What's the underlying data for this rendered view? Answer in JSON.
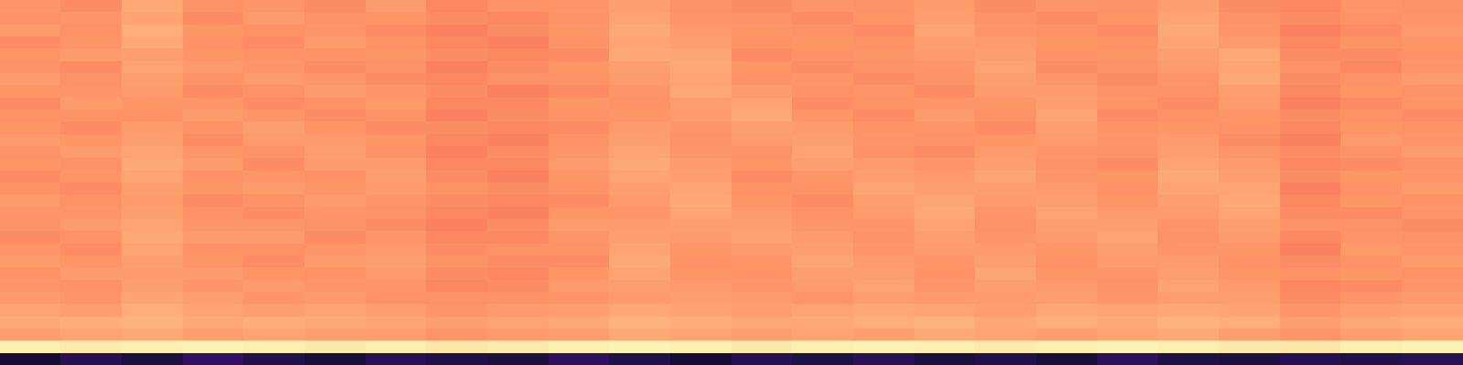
{
  "chart_data": {
    "type": "heatmap",
    "tick_labels": false,
    "zlim": [
      0,
      1
    ],
    "cells": [
      [
        0.78,
        0.76,
        0.82,
        0.77,
        0.78,
        0.76,
        0.79,
        0.75,
        0.77,
        0.78,
        0.8,
        0.77,
        0.76,
        0.78,
        0.77,
        0.79,
        0.76,
        0.78,
        0.77,
        0.8,
        0.76,
        0.75,
        0.78,
        0.77
      ],
      [
        0.77,
        0.78,
        0.81,
        0.76,
        0.79,
        0.77,
        0.78,
        0.76,
        0.75,
        0.77,
        0.81,
        0.78,
        0.77,
        0.76,
        0.78,
        0.8,
        0.77,
        0.76,
        0.78,
        0.81,
        0.77,
        0.76,
        0.77,
        0.78
      ],
      [
        0.79,
        0.77,
        0.83,
        0.78,
        0.77,
        0.78,
        0.76,
        0.74,
        0.76,
        0.78,
        0.82,
        0.79,
        0.78,
        0.77,
        0.76,
        0.81,
        0.78,
        0.77,
        0.76,
        0.82,
        0.78,
        0.74,
        0.76,
        0.79
      ],
      [
        0.76,
        0.78,
        0.82,
        0.77,
        0.76,
        0.79,
        0.77,
        0.75,
        0.74,
        0.77,
        0.81,
        0.8,
        0.77,
        0.78,
        0.77,
        0.8,
        0.79,
        0.78,
        0.77,
        0.81,
        0.79,
        0.75,
        0.77,
        0.78
      ],
      [
        0.78,
        0.79,
        0.8,
        0.78,
        0.77,
        0.77,
        0.78,
        0.76,
        0.75,
        0.76,
        0.82,
        0.81,
        0.76,
        0.77,
        0.78,
        0.79,
        0.8,
        0.77,
        0.78,
        0.8,
        0.82,
        0.76,
        0.76,
        0.77
      ],
      [
        0.77,
        0.76,
        0.81,
        0.79,
        0.78,
        0.76,
        0.77,
        0.74,
        0.76,
        0.78,
        0.8,
        0.82,
        0.78,
        0.76,
        0.77,
        0.78,
        0.81,
        0.76,
        0.77,
        0.79,
        0.81,
        0.77,
        0.75,
        0.78
      ],
      [
        0.79,
        0.77,
        0.8,
        0.77,
        0.79,
        0.78,
        0.76,
        0.75,
        0.77,
        0.77,
        0.79,
        0.81,
        0.77,
        0.78,
        0.76,
        0.77,
        0.8,
        0.78,
        0.76,
        0.78,
        0.82,
        0.76,
        0.77,
        0.79
      ],
      [
        0.78,
        0.78,
        0.79,
        0.76,
        0.77,
        0.79,
        0.78,
        0.76,
        0.74,
        0.76,
        0.78,
        0.82,
        0.79,
        0.77,
        0.78,
        0.76,
        0.79,
        0.79,
        0.77,
        0.77,
        0.8,
        0.75,
        0.78,
        0.77
      ],
      [
        0.76,
        0.79,
        0.78,
        0.78,
        0.76,
        0.77,
        0.79,
        0.75,
        0.75,
        0.78,
        0.77,
        0.8,
        0.81,
        0.76,
        0.77,
        0.78,
        0.78,
        0.8,
        0.78,
        0.76,
        0.79,
        0.74,
        0.76,
        0.78
      ],
      [
        0.77,
        0.77,
        0.77,
        0.79,
        0.78,
        0.76,
        0.77,
        0.74,
        0.76,
        0.77,
        0.78,
        0.79,
        0.82,
        0.78,
        0.76,
        0.79,
        0.77,
        0.81,
        0.76,
        0.77,
        0.78,
        0.76,
        0.77,
        0.76
      ],
      [
        0.78,
        0.76,
        0.79,
        0.77,
        0.8,
        0.78,
        0.76,
        0.76,
        0.75,
        0.76,
        0.79,
        0.78,
        0.8,
        0.79,
        0.77,
        0.78,
        0.76,
        0.8,
        0.77,
        0.78,
        0.77,
        0.75,
        0.78,
        0.77
      ],
      [
        0.79,
        0.78,
        0.8,
        0.76,
        0.79,
        0.79,
        0.78,
        0.75,
        0.74,
        0.77,
        0.8,
        0.77,
        0.79,
        0.8,
        0.78,
        0.77,
        0.78,
        0.79,
        0.78,
        0.79,
        0.76,
        0.74,
        0.79,
        0.78
      ],
      [
        0.77,
        0.79,
        0.81,
        0.78,
        0.77,
        0.8,
        0.77,
        0.74,
        0.76,
        0.78,
        0.81,
        0.78,
        0.77,
        0.81,
        0.77,
        0.76,
        0.79,
        0.78,
        0.77,
        0.8,
        0.78,
        0.76,
        0.77,
        0.79
      ],
      [
        0.78,
        0.77,
        0.82,
        0.79,
        0.76,
        0.79,
        0.79,
        0.75,
        0.75,
        0.79,
        0.82,
        0.79,
        0.78,
        0.8,
        0.79,
        0.78,
        0.8,
        0.77,
        0.76,
        0.81,
        0.79,
        0.75,
        0.76,
        0.77
      ],
      [
        0.76,
        0.78,
        0.81,
        0.77,
        0.78,
        0.77,
        0.8,
        0.76,
        0.74,
        0.78,
        0.81,
        0.8,
        0.76,
        0.78,
        0.8,
        0.79,
        0.81,
        0.78,
        0.78,
        0.82,
        0.8,
        0.76,
        0.78,
        0.78
      ],
      [
        0.77,
        0.76,
        0.8,
        0.78,
        0.79,
        0.78,
        0.79,
        0.77,
        0.76,
        0.77,
        0.8,
        0.81,
        0.77,
        0.77,
        0.81,
        0.8,
        0.8,
        0.79,
        0.77,
        0.81,
        0.81,
        0.74,
        0.77,
        0.79
      ],
      [
        0.79,
        0.77,
        0.79,
        0.76,
        0.77,
        0.79,
        0.78,
        0.76,
        0.75,
        0.76,
        0.79,
        0.82,
        0.78,
        0.76,
        0.8,
        0.81,
        0.79,
        0.8,
        0.78,
        0.8,
        0.82,
        0.75,
        0.78,
        0.77
      ],
      [
        0.78,
        0.78,
        0.8,
        0.77,
        0.76,
        0.78,
        0.77,
        0.75,
        0.74,
        0.78,
        0.78,
        0.81,
        0.79,
        0.77,
        0.79,
        0.82,
        0.78,
        0.81,
        0.79,
        0.79,
        0.81,
        0.76,
        0.76,
        0.78
      ],
      [
        0.77,
        0.79,
        0.81,
        0.78,
        0.78,
        0.77,
        0.76,
        0.74,
        0.76,
        0.79,
        0.79,
        0.8,
        0.8,
        0.78,
        0.78,
        0.81,
        0.77,
        0.8,
        0.8,
        0.78,
        0.8,
        0.77,
        0.77,
        0.76
      ],
      [
        0.76,
        0.77,
        0.82,
        0.79,
        0.79,
        0.76,
        0.78,
        0.75,
        0.75,
        0.78,
        0.8,
        0.79,
        0.81,
        0.79,
        0.77,
        0.8,
        0.78,
        0.79,
        0.81,
        0.77,
        0.79,
        0.75,
        0.78,
        0.77
      ],
      [
        0.78,
        0.76,
        0.81,
        0.77,
        0.77,
        0.78,
        0.79,
        0.76,
        0.77,
        0.77,
        0.81,
        0.78,
        0.79,
        0.8,
        0.78,
        0.79,
        0.79,
        0.78,
        0.8,
        0.78,
        0.78,
        0.74,
        0.79,
        0.78
      ],
      [
        0.79,
        0.78,
        0.8,
        0.78,
        0.76,
        0.79,
        0.8,
        0.77,
        0.76,
        0.76,
        0.82,
        0.77,
        0.78,
        0.81,
        0.79,
        0.78,
        0.8,
        0.77,
        0.79,
        0.79,
        0.77,
        0.76,
        0.77,
        0.79
      ],
      [
        0.77,
        0.79,
        0.79,
        0.79,
        0.78,
        0.77,
        0.79,
        0.76,
        0.75,
        0.78,
        0.81,
        0.78,
        0.77,
        0.8,
        0.8,
        0.77,
        0.81,
        0.78,
        0.78,
        0.8,
        0.78,
        0.77,
        0.78,
        0.77
      ],
      [
        0.78,
        0.77,
        0.8,
        0.78,
        0.79,
        0.78,
        0.78,
        0.75,
        0.76,
        0.79,
        0.8,
        0.79,
        0.78,
        0.79,
        0.81,
        0.78,
        0.8,
        0.79,
        0.77,
        0.81,
        0.79,
        0.75,
        0.76,
        0.78
      ],
      [
        0.79,
        0.78,
        0.81,
        0.8,
        0.78,
        0.79,
        0.77,
        0.77,
        0.77,
        0.78,
        0.79,
        0.8,
        0.79,
        0.78,
        0.8,
        0.79,
        0.79,
        0.8,
        0.78,
        0.8,
        0.8,
        0.76,
        0.78,
        0.79
      ],
      [
        0.81,
        0.8,
        0.83,
        0.81,
        0.8,
        0.81,
        0.8,
        0.78,
        0.79,
        0.8,
        0.82,
        0.81,
        0.8,
        0.81,
        0.82,
        0.81,
        0.8,
        0.82,
        0.81,
        0.82,
        0.81,
        0.78,
        0.8,
        0.81
      ],
      [
        0.82,
        0.83,
        0.84,
        0.82,
        0.83,
        0.82,
        0.81,
        0.8,
        0.81,
        0.82,
        0.84,
        0.83,
        0.82,
        0.82,
        0.83,
        0.84,
        0.82,
        0.83,
        0.82,
        0.84,
        0.83,
        0.8,
        0.82,
        0.83
      ],
      [
        0.8,
        0.81,
        0.82,
        0.8,
        0.81,
        0.8,
        0.8,
        0.78,
        0.79,
        0.8,
        0.82,
        0.81,
        0.8,
        0.81,
        0.8,
        0.82,
        0.81,
        0.8,
        0.81,
        0.82,
        0.8,
        0.78,
        0.8,
        0.81
      ],
      [
        0.97,
        0.96,
        0.97,
        0.98,
        0.97,
        0.96,
        0.97,
        0.95,
        0.96,
        0.97,
        0.98,
        0.97,
        0.96,
        0.97,
        0.98,
        0.97,
        0.96,
        0.97,
        0.98,
        0.97,
        0.96,
        0.95,
        0.97,
        0.98
      ],
      [
        0.1,
        0.15,
        0.12,
        0.18,
        0.14,
        0.11,
        0.16,
        0.13,
        0.12,
        0.17,
        0.14,
        0.1,
        0.15,
        0.13,
        0.16,
        0.12,
        0.14,
        0.11,
        0.17,
        0.13,
        0.12,
        0.15,
        0.14,
        0.16
      ]
    ]
  }
}
